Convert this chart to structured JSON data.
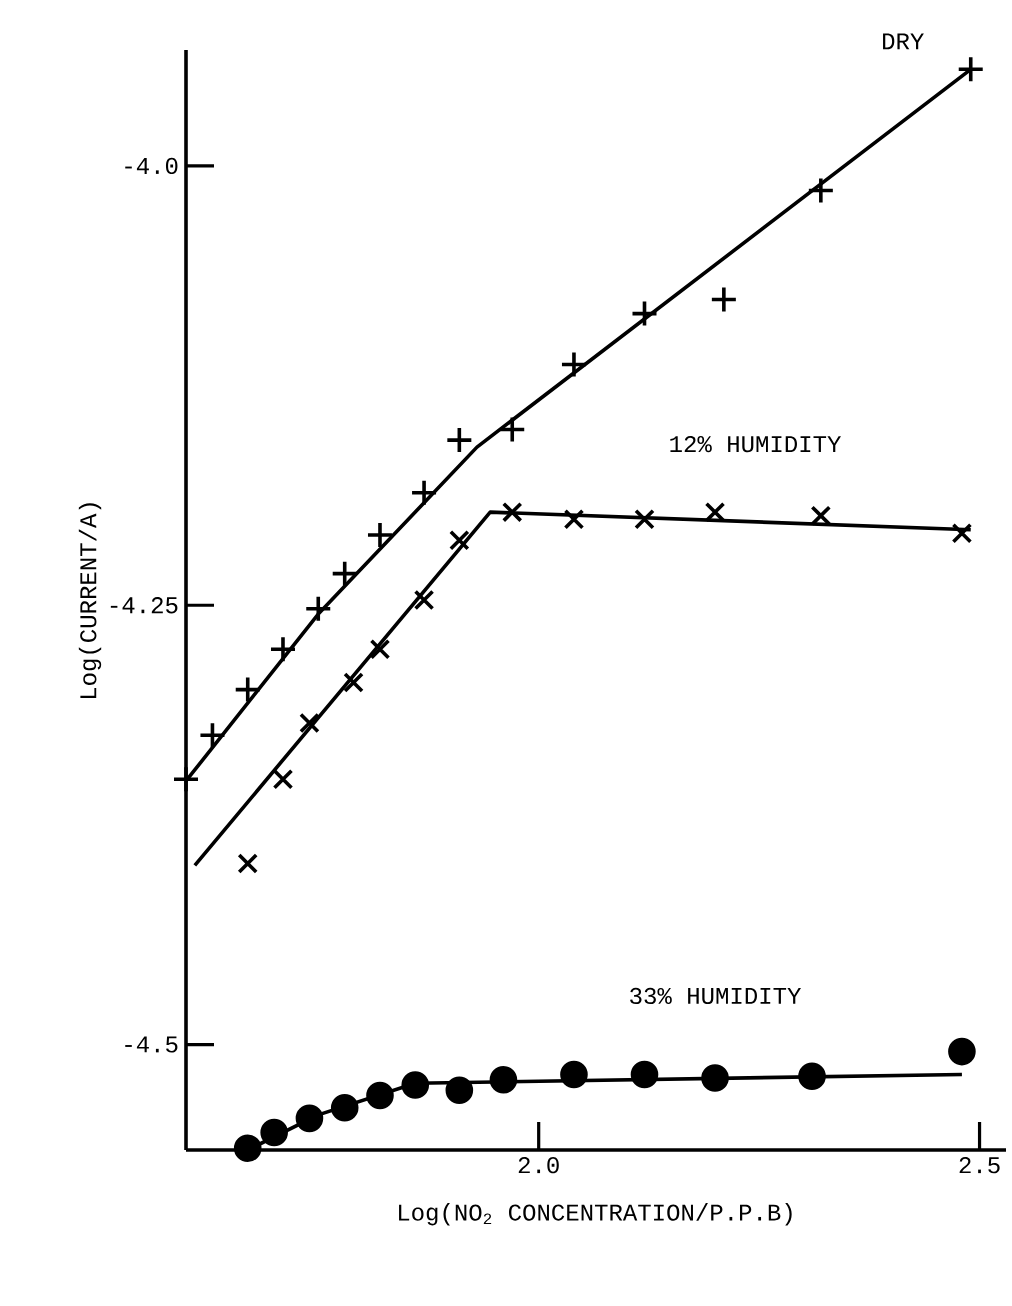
{
  "chart_data": {
    "type": "scatter",
    "xlabel": "Log(NO$_{2}$ CONCENTRATION/P.P.B)",
    "ylabel": "Log(CURRENT/A)",
    "xlim": [
      1.6,
      2.53
    ],
    "ylim": [
      -4.56,
      -3.934
    ],
    "xticks": [
      {
        "value": 2.0,
        "label": "2.0"
      },
      {
        "value": 2.5,
        "label": "2.5"
      }
    ],
    "yticks": [
      {
        "value": -4.0,
        "label": "-4.0"
      },
      -4.25,
      -4.5
    ],
    "series": [
      {
        "name": "DRY",
        "type": "scatter",
        "marker": "cross",
        "color": "#000000",
        "x": [
          1.6,
          1.63,
          1.67,
          1.71,
          1.75,
          1.78,
          1.82,
          1.87,
          1.91,
          1.97,
          2.04,
          2.12,
          2.21,
          2.32,
          2.49
        ],
        "values": [
          -4.349,
          -4.324,
          -4.298,
          -4.275,
          -4.252,
          -4.232,
          -4.21,
          -4.186,
          -4.156,
          -4.15,
          -4.113,
          -4.084,
          -4.076,
          -4.014,
          -3.945
        ]
      },
      {
        "type": "line",
        "marker": "none",
        "color": "#000000",
        "x": [
          1.6,
          1.75,
          1.93,
          2.49
        ],
        "values": [
          -4.35,
          -4.255,
          -4.16,
          -3.945
        ]
      },
      {
        "name": "12% HUMIDITY",
        "type": "scatter",
        "marker": "x",
        "color": "#000000",
        "x": [
          1.67,
          1.71,
          1.74,
          1.79,
          1.82,
          1.87,
          1.91,
          1.97,
          2.04,
          2.12,
          2.2,
          2.32,
          2.48
        ],
        "values": [
          -4.397,
          -4.349,
          -4.317,
          -4.294,
          -4.275,
          -4.247,
          -4.213,
          -4.197,
          -4.201,
          -4.201,
          -4.197,
          -4.199,
          -4.209
        ]
      },
      {
        "type": "line",
        "marker": "none",
        "color": "#000000",
        "x": [
          1.61,
          1.945,
          2.49
        ],
        "values": [
          -4.398,
          -4.197,
          -4.207
        ]
      },
      {
        "name": "33% HUMIDITY",
        "type": "scatter",
        "marker": "circle",
        "color": "#000000",
        "x": [
          1.67,
          1.7,
          1.74,
          1.78,
          1.82,
          1.86,
          1.91,
          1.96,
          2.04,
          2.12,
          2.2,
          2.31,
          2.48
        ],
        "values": [
          -4.559,
          -4.55,
          -4.542,
          -4.536,
          -4.529,
          -4.523,
          -4.526,
          -4.52,
          -4.517,
          -4.517,
          -4.519,
          -4.518,
          -4.504
        ]
      },
      {
        "type": "line",
        "marker": "none",
        "color": "#000000",
        "x": [
          1.67,
          1.75,
          1.86,
          2.48
        ],
        "values": [
          -4.56,
          -4.54,
          -4.522,
          -4.517
        ]
      }
    ]
  }
}
